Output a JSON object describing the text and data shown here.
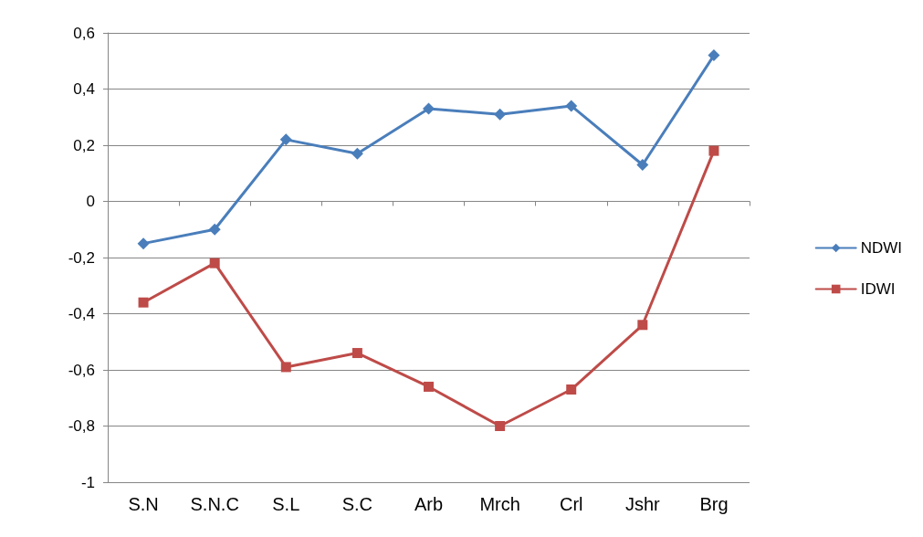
{
  "chart_data": {
    "type": "line",
    "categories": [
      "S.N",
      "S.N.C",
      "S.L",
      "S.C",
      "Arb",
      "Mrch",
      "Crl",
      "Jshr",
      "Brg"
    ],
    "series": [
      {
        "name": "NDWI",
        "color": "#4a7ebb",
        "marker": "diamond",
        "values": [
          -0.15,
          -0.1,
          0.22,
          0.17,
          0.33,
          0.31,
          0.34,
          0.13,
          0.52
        ]
      },
      {
        "name": "IDWI",
        "color": "#be4b48",
        "marker": "square",
        "values": [
          -0.36,
          -0.22,
          -0.59,
          -0.54,
          -0.66,
          -0.8,
          -0.67,
          -0.44,
          0.18
        ]
      }
    ],
    "ylim": [
      -1,
      0.6
    ],
    "yticks": [
      {
        "value": -1,
        "label": "-1"
      },
      {
        "value": -0.8,
        "label": "-0,8"
      },
      {
        "value": -0.6,
        "label": "-0,6"
      },
      {
        "value": -0.4,
        "label": "-0,4"
      },
      {
        "value": -0.2,
        "label": "-0,2"
      },
      {
        "value": 0,
        "label": "0"
      },
      {
        "value": 0.2,
        "label": "0,2"
      },
      {
        "value": 0.4,
        "label": "0,4"
      },
      {
        "value": 0.6,
        "label": "0,6"
      }
    ],
    "grid": "y",
    "legend": "right",
    "line_style": "solid"
  }
}
